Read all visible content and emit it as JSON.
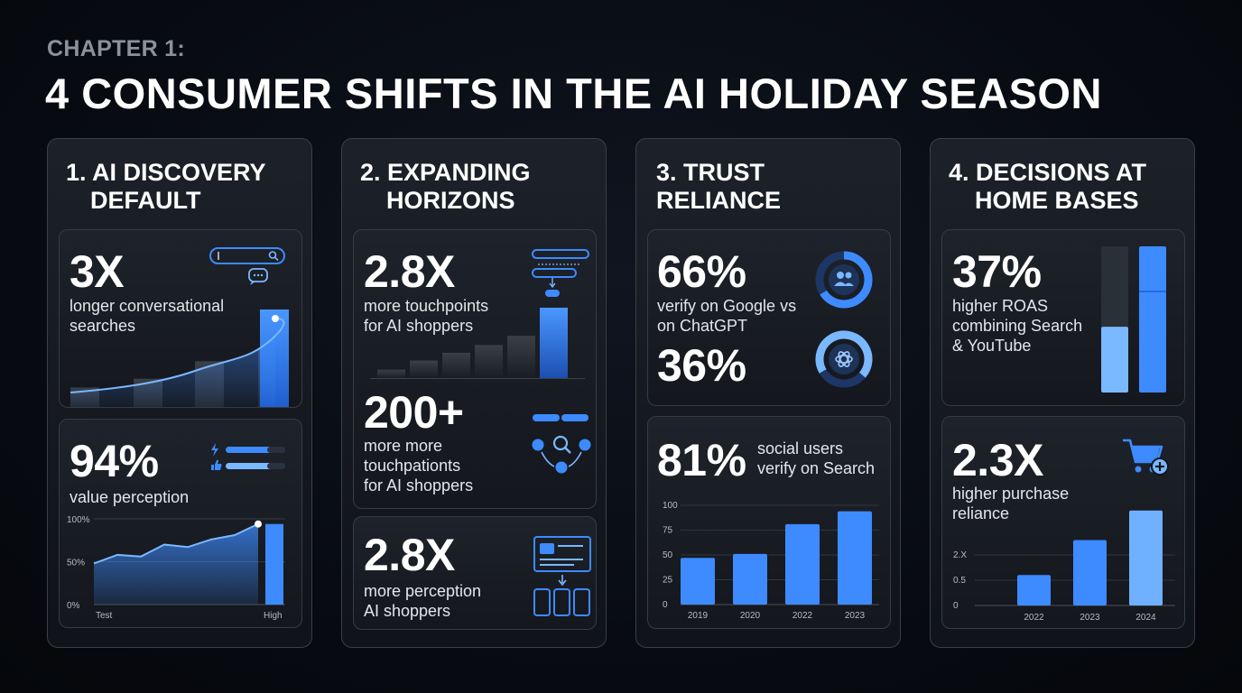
{
  "header": {
    "chapter": "CHAPTER 1:",
    "title": "4 CONSUMER SHIFTS IN THE AI HOLIDAY SEASON"
  },
  "colors": {
    "accent": "#3d8bff",
    "accent_light": "#7ab8ff",
    "background": "#070a10",
    "panel": "#1a1e25"
  },
  "columns": [
    {
      "title_line1": "1. AI DISCOVERY",
      "title_line2": "DEFAULT",
      "cards": [
        {
          "stat": "3X",
          "desc_line1": "longer conversational",
          "desc_line2": "searches",
          "icon": "search-chat-icon"
        },
        {
          "stat": "94%",
          "desc": "value perception",
          "icon": "lightning-thumbs-icon"
        }
      ]
    },
    {
      "title_line1": "2. EXPANDING",
      "title_line2": "HORIZONS",
      "cards": [
        {
          "stat": "2.8X",
          "desc_line1": "more touchpoints",
          "desc_line2": "for AI shoppers",
          "icon": "flowchart-icon"
        },
        {
          "stat": "200+",
          "desc_line1": "more more",
          "desc_line2": "touchpationts",
          "desc_line3": "for AI shoppers",
          "icon": "network-search-icon"
        },
        {
          "stat": "2.8X",
          "desc_line1": "more perception",
          "desc_line2": "AI shoppers",
          "icon": "browser-cards-icon"
        }
      ]
    },
    {
      "title_line1": "3. TRUST",
      "title_line2": "RELIANCE",
      "cards": [
        {
          "stat": "66%",
          "desc_line1": "verify on Google vs",
          "desc_line2": "on ChatGPT",
          "stat2": "36%",
          "icon": "users-donut-icon",
          "icon2": "chatgpt-donut-icon"
        },
        {
          "stat": "81%",
          "desc_line1": "social users",
          "desc_line2": "verify on Search"
        }
      ]
    },
    {
      "title_line1": "4. DECISIONS AT",
      "title_line2": "HOME BASES",
      "cards": [
        {
          "stat": "37%",
          "desc_line1": "higher ROAS",
          "desc_line2": "combining Search",
          "desc_line3": "& YouTube"
        },
        {
          "stat": "2.3X",
          "desc_line1": "higher purchase",
          "desc_line2": "reliance",
          "icon": "cart-add-icon"
        }
      ]
    }
  ],
  "chart_data": [
    {
      "type": "bar",
      "title": "",
      "values": [
        0.2,
        0.29,
        0.47,
        0.6,
        1.0
      ],
      "overlay": "area-line",
      "note": "unlabeled growth bars behind a rising curve"
    },
    {
      "type": "area",
      "x_labels": [
        "Test",
        "High"
      ],
      "ytick_labels": [
        "100%",
        "50%",
        "0%"
      ],
      "ylim": [
        0,
        100
      ],
      "values": [
        48,
        58,
        56,
        70,
        67,
        76,
        81,
        94
      ],
      "bar_value": 94
    },
    {
      "type": "bar",
      "title": "",
      "values": [
        0.12,
        0.25,
        0.36,
        0.47,
        0.6,
        1.0
      ]
    },
    {
      "type": "bar",
      "categories": [
        "2019",
        "2020",
        "2022",
        "2023"
      ],
      "values": [
        47,
        51,
        81,
        94
      ],
      "yticks": [
        "100",
        "75",
        "50",
        "25",
        "0"
      ],
      "ylim": [
        0,
        100
      ]
    },
    {
      "type": "bar",
      "series": [
        {
          "values": [
            45
          ]
        },
        {
          "values": [
            100
          ]
        }
      ],
      "stacked_split": [
        0.45,
        0.7
      ]
    },
    {
      "type": "bar",
      "categories": [
        "2022",
        "2023",
        "2024"
      ],
      "values": [
        0.72,
        1.55,
        2.25
      ],
      "yticks": [
        "2.X",
        "0.5",
        "0"
      ],
      "ylim": [
        0,
        2.5
      ]
    }
  ]
}
